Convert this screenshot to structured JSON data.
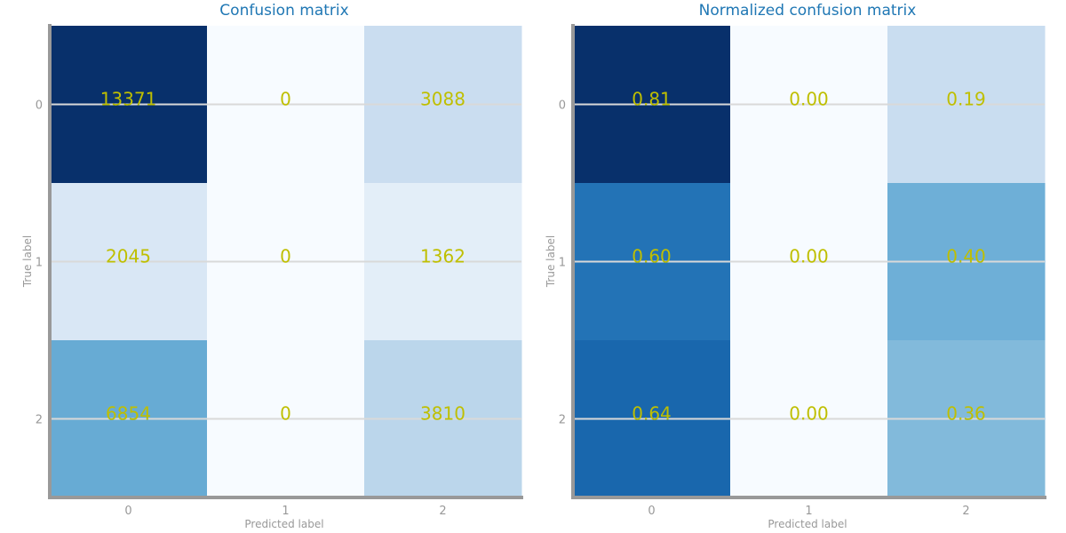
{
  "colors": {
    "title": "#1f77b4",
    "axis": "#999999",
    "tick_text": "#999999",
    "cell_text": "#bfbf00",
    "gridline": "#d9d9d9",
    "heat_low": "#f7fbff",
    "heat_high": "#08306b"
  },
  "chart_data": [
    {
      "type": "heatmap",
      "title": "Confusion matrix",
      "xlabel": "Predicted label",
      "ylabel": "True label",
      "x_tick_labels": [
        "0",
        "1",
        "2"
      ],
      "y_tick_labels": [
        "0",
        "1",
        "2"
      ],
      "values": [
        [
          13371,
          0,
          3088
        ],
        [
          2045,
          0,
          1362
        ],
        [
          6854,
          0,
          3810
        ]
      ],
      "cell_labels": [
        [
          "13371",
          "0",
          "3088"
        ],
        [
          "2045",
          "0",
          "1362"
        ],
        [
          "6854",
          "0",
          "3810"
        ]
      ],
      "colormap": "Blues",
      "vmin": 0,
      "vmax": 13371,
      "grid": true
    },
    {
      "type": "heatmap",
      "title": "Normalized confusion matrix",
      "xlabel": "Predicted label",
      "ylabel": "True label",
      "x_tick_labels": [
        "0",
        "1",
        "2"
      ],
      "y_tick_labels": [
        "0",
        "1",
        "2"
      ],
      "values": [
        [
          0.81,
          0.0,
          0.19
        ],
        [
          0.6,
          0.0,
          0.4
        ],
        [
          0.64,
          0.0,
          0.36
        ]
      ],
      "cell_labels": [
        [
          "0.81",
          "0.00",
          "0.19"
        ],
        [
          "0.60",
          "0.00",
          "0.40"
        ],
        [
          "0.64",
          "0.00",
          "0.36"
        ]
      ],
      "colormap": "Blues",
      "vmin": 0,
      "vmax": 0.81,
      "grid": true
    }
  ]
}
